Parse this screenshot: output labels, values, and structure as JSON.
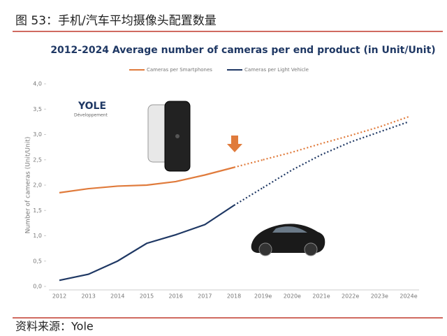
{
  "header": {
    "title": "图 53：手机/汽车平均摄像头配置数量"
  },
  "footer": {
    "source": "资料来源：Yole"
  },
  "logo": {
    "name": "YOLE",
    "sub": "Développement"
  },
  "chart_data": {
    "type": "line",
    "title": "2012-2024 Average number of cameras per end product (in Unit/Unit)",
    "y_label": "Number of cameras (Unit/Unit)",
    "categories": [
      "2012",
      "2013",
      "2014",
      "2015",
      "2016",
      "2017",
      "2018",
      "2019e",
      "2020e",
      "2021e",
      "2022e",
      "2023e",
      "2024e"
    ],
    "series": [
      {
        "name": "Cameras per Smartphones",
        "color": "#e07b3c",
        "values": [
          1.85,
          1.93,
          1.98,
          2.0,
          2.07,
          2.2,
          2.35,
          2.5,
          2.65,
          2.82,
          2.98,
          3.15,
          3.35
        ]
      },
      {
        "name": "Cameras per Light Vehicle",
        "color": "#1f3864",
        "values": [
          0.12,
          0.24,
          0.5,
          0.85,
          1.02,
          1.22,
          1.6,
          1.95,
          2.3,
          2.6,
          2.85,
          3.05,
          3.25
        ]
      }
    ],
    "ylim": [
      0,
      4
    ],
    "yticks": [
      {
        "value": 0,
        "label": "0,0"
      },
      {
        "value": 0.5,
        "label": "0,5"
      },
      {
        "value": 1,
        "label": "1,0"
      },
      {
        "value": 1.5,
        "label": "1,5"
      },
      {
        "value": 2,
        "label": "2,0"
      },
      {
        "value": 2.5,
        "label": "2,5"
      },
      {
        "value": 3,
        "label": "3,0"
      },
      {
        "value": 3.5,
        "label": "3,5"
      },
      {
        "value": 4,
        "label": "4,0"
      }
    ],
    "grid": false
  }
}
